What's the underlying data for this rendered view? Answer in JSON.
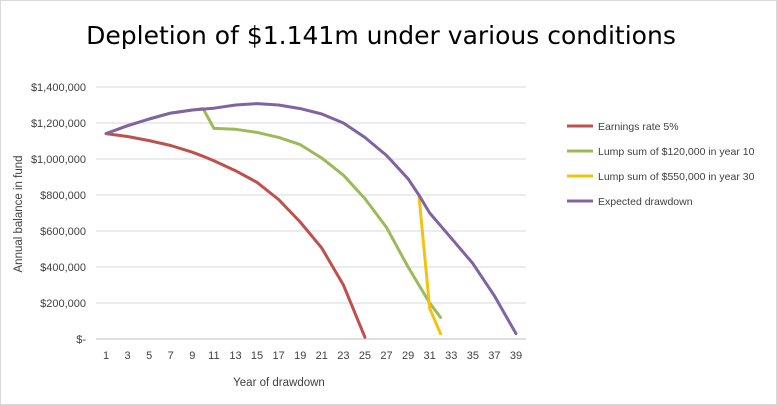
{
  "chart_data": {
    "type": "line",
    "title": "Depletion of $1.141m under various conditions",
    "xlabel": "Year of drawdown",
    "ylabel": "Annual balance in fund",
    "ylim": [
      0,
      1400000
    ],
    "yticks": [
      0,
      200000,
      400000,
      600000,
      800000,
      1000000,
      1200000,
      1400000
    ],
    "ytick_labels": [
      "$-",
      "$200,000",
      "$400,000",
      "$600,000",
      "$800,000",
      "$1,000,000",
      "$1,200,000",
      "$1,400,000"
    ],
    "xlim": [
      1,
      39
    ],
    "xtick_labels": [
      "1",
      "3",
      "5",
      "7",
      "9",
      "11",
      "13",
      "15",
      "17",
      "19",
      "21",
      "23",
      "25",
      "27",
      "29",
      "31",
      "33",
      "35",
      "37",
      "39"
    ],
    "grid": "horizontal",
    "legend_position": "right",
    "series": [
      {
        "name": "Earnings rate 5%",
        "color": "#c0504d",
        "x": [
          1,
          3,
          5,
          7,
          9,
          10,
          11,
          13,
          15,
          17,
          19,
          21,
          23,
          25
        ],
        "values": [
          1141000,
          1125000,
          1102000,
          1075000,
          1038000,
          1015000,
          990000,
          935000,
          870000,
          775000,
          650000,
          505000,
          300000,
          10000
        ]
      },
      {
        "name": "Lump sum of $120,000 in year 10",
        "color": "#9bbb59",
        "x": [
          1,
          3,
          5,
          7,
          9,
          10,
          11,
          13,
          15,
          17,
          19,
          21,
          23,
          25,
          27,
          29,
          31,
          32
        ],
        "values": [
          1141000,
          1185000,
          1222000,
          1255000,
          1272000,
          1280000,
          1170000,
          1165000,
          1148000,
          1120000,
          1080000,
          1005000,
          910000,
          780000,
          620000,
          400000,
          200000,
          120000
        ]
      },
      {
        "name": "Lump sum of $550,000 in year 30",
        "color": "#f2c314",
        "x": [
          30,
          31,
          32
        ],
        "values": [
          800000,
          170000,
          30000
        ]
      },
      {
        "name": "Expected drawdown",
        "color": "#8064a2",
        "x": [
          1,
          3,
          5,
          7,
          9,
          11,
          13,
          15,
          17,
          19,
          21,
          23,
          25,
          27,
          29,
          30,
          31,
          33,
          35,
          37,
          39
        ],
        "values": [
          1141000,
          1185000,
          1222000,
          1255000,
          1272000,
          1282000,
          1300000,
          1308000,
          1300000,
          1280000,
          1250000,
          1200000,
          1120000,
          1020000,
          890000,
          800000,
          700000,
          560000,
          420000,
          240000,
          30000
        ]
      }
    ]
  }
}
